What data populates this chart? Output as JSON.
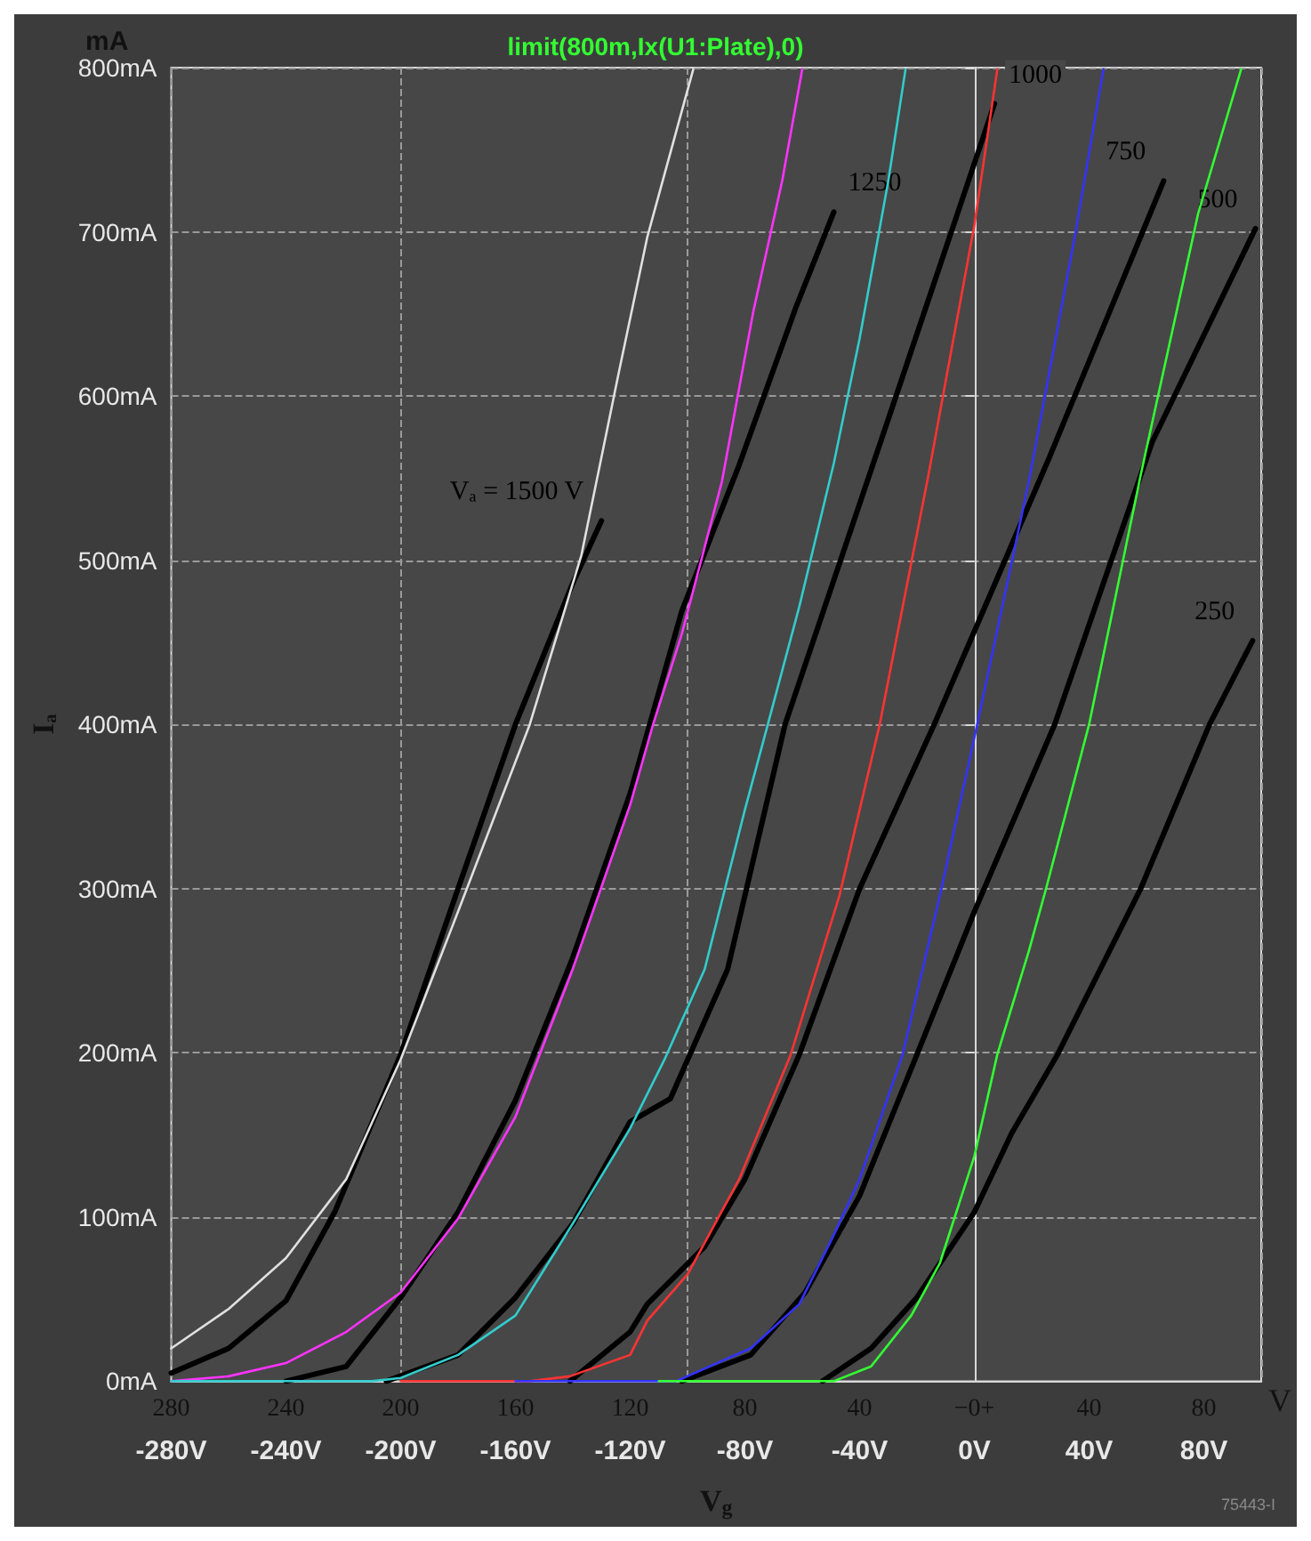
{
  "chart_data": {
    "type": "line",
    "title": "limit(800m,Ix(U1:Plate),0)",
    "xlabel": "V$_{g}$",
    "ylabel": "Iₐ",
    "x2label": "V",
    "annotations": [
      "mA",
      "75443-I"
    ],
    "xlim": [
      -280,
      100
    ],
    "ylim": [
      0,
      800
    ],
    "xticks": [
      {
        "value": -280,
        "label": "-280V"
      },
      {
        "value": -240,
        "label": "-240V"
      },
      {
        "value": -200,
        "label": "-200V"
      },
      {
        "value": -160,
        "label": "-160V"
      },
      {
        "value": -120,
        "label": "-120V"
      },
      {
        "value": -80,
        "label": "-80V"
      },
      {
        "value": -40,
        "label": "-40V"
      },
      {
        "value": 0,
        "label": "0V"
      },
      {
        "value": 40,
        "label": "40V"
      },
      {
        "value": 80,
        "label": "80V"
      }
    ],
    "x2lim": [
      -280,
      100
    ],
    "x2ticks": [
      {
        "value": -280,
        "label": "280"
      },
      {
        "value": -240,
        "label": "240"
      },
      {
        "value": -200,
        "label": "200"
      },
      {
        "value": -160,
        "label": "160"
      },
      {
        "value": -120,
        "label": "120"
      },
      {
        "value": -80,
        "label": "80"
      },
      {
        "value": -40,
        "label": "40"
      },
      {
        "value": 0,
        "label": "−0+"
      },
      {
        "value": 40,
        "label": "40"
      },
      {
        "value": 80,
        "label": "80"
      }
    ],
    "yticks": [
      {
        "value": 0,
        "label": "0mA"
      },
      {
        "value": 100,
        "label": "100mA"
      },
      {
        "value": 200,
        "label": "200mA"
      },
      {
        "value": 300,
        "label": "300mA"
      },
      {
        "value": 400,
        "label": "400mA"
      },
      {
        "value": 500,
        "label": "500mA"
      },
      {
        "value": 600,
        "label": "600mA"
      },
      {
        "value": 700,
        "label": "700mA"
      },
      {
        "value": 800,
        "label": "800mA"
      }
    ],
    "grid": true,
    "marker": "none",
    "line_style": "solid",
    "series": [
      {
        "name": "Vₐ = 1500 V",
        "color": "#000000",
        "x": [
          -280,
          -260,
          -240,
          -223,
          -200,
          -180,
          -160,
          -140,
          -130
        ],
        "values": [
          5,
          20,
          49,
          103,
          199,
          300,
          400,
          486,
          524
        ]
      },
      {
        "name": "1250",
        "color": "#000000",
        "x": [
          -240,
          -219,
          -200,
          -180,
          -160,
          -140,
          -120,
          -102,
          -82,
          -62,
          -49
        ],
        "values": [
          0,
          9,
          51,
          103,
          171,
          258,
          358,
          469,
          558,
          655,
          712
        ]
      },
      {
        "name": "1000",
        "color": "#000000",
        "x": [
          -205,
          -180,
          -160,
          -140,
          -120,
          -106,
          -86,
          -66,
          -30,
          7
        ],
        "values": [
          0,
          16,
          51,
          96,
          158,
          172,
          251,
          400,
          586,
          778
        ]
      },
      {
        "name": "750",
        "color": "#000000",
        "x": [
          -141,
          -120,
          -114,
          -94,
          -80,
          -61,
          -40,
          -14,
          26,
          66
        ],
        "values": [
          0,
          30,
          47,
          82,
          123,
          199,
          300,
          400,
          562,
          731
        ]
      },
      {
        "name": "500",
        "color": "#000000",
        "x": [
          -102,
          -78,
          -59,
          -40,
          -20,
          0,
          28,
          62,
          98
        ],
        "values": [
          0,
          16,
          54,
          113,
          199,
          286,
          400,
          572,
          702
        ]
      },
      {
        "name": "250",
        "color": "#000000",
        "x": [
          -53,
          -36,
          -20,
          0,
          13,
          29,
          58,
          82,
          97
        ],
        "values": [
          0,
          20,
          51,
          103,
          151,
          199,
          300,
          400,
          451
        ]
      },
      {
        "color": "#e0e0e0",
        "x": [
          -280,
          -260,
          -240,
          -219,
          -200,
          -180,
          -155,
          -137,
          -124,
          -114,
          -98
        ],
        "values": [
          20,
          44,
          75,
          123,
          196,
          286,
          400,
          503,
          614,
          697,
          799
        ]
      },
      {
        "color": "#ff33ff",
        "x": [
          -280,
          -260,
          -240,
          -219,
          -200,
          -180,
          -160,
          -140,
          -120,
          -112,
          -102,
          -88,
          -77,
          -67,
          -60
        ],
        "values": [
          0,
          3,
          11,
          30,
          54,
          99,
          161,
          251,
          351,
          400,
          455,
          548,
          652,
          731,
          799
        ]
      },
      {
        "color": "#33cccc",
        "x": [
          -280,
          -210,
          -200,
          -180,
          -160,
          -140,
          -120,
          -108,
          -94,
          -80,
          -72,
          -61,
          -49,
          -40,
          -30,
          -24
        ],
        "values": [
          0,
          0,
          2,
          16,
          40,
          96,
          154,
          196,
          251,
          348,
          400,
          472,
          559,
          635,
          731,
          799
        ]
      },
      {
        "color": "#ff3333",
        "x": [
          -200,
          -155,
          -141,
          -120,
          -114,
          -100,
          -82,
          -64,
          -47,
          -33,
          -16,
          0,
          8
        ],
        "values": [
          0,
          0,
          3,
          16,
          37,
          65,
          123,
          199,
          296,
          400,
          552,
          704,
          799
        ]
      },
      {
        "color": "#3333ff",
        "x": [
          -160,
          -104,
          -78,
          -61,
          -49,
          -40,
          -25,
          -12,
          1,
          19,
          35,
          45
        ],
        "values": [
          0,
          0,
          20,
          47,
          89,
          123,
          199,
          296,
          400,
          548,
          697,
          799
        ]
      },
      {
        "color": "#33ff33",
        "x": [
          -110,
          -49,
          -36,
          -22,
          -12,
          0,
          8,
          19,
          25,
          40,
          58,
          78,
          93
        ],
        "values": [
          0,
          0,
          9,
          40,
          72,
          137,
          199,
          262,
          300,
          400,
          552,
          711,
          799
        ]
      }
    ]
  }
}
